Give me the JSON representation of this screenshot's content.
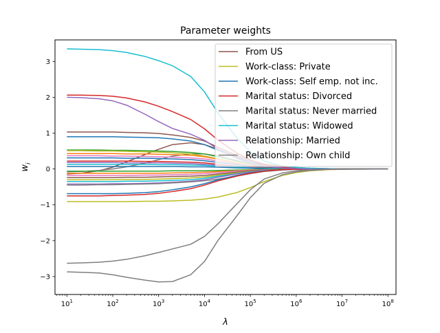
{
  "chart_data": {
    "type": "line",
    "title": "Parameter weights",
    "xlabel": "λ",
    "ylabel": "w",
    "ylabel_sub": "i",
    "xscale": "log",
    "xlim": [
      5.5,
      150000000
    ],
    "ylim": [
      -3.5,
      3.6
    ],
    "grid": false,
    "legend_position": "top-right",
    "x": [
      10,
      20,
      50,
      100,
      200,
      500,
      1000,
      2000,
      5000,
      10000,
      20000,
      50000,
      100000,
      200000,
      500000,
      1000000,
      2000000,
      5000000,
      10000000,
      100000000
    ],
    "x_ticks": [
      {
        "value": 10,
        "base": "10",
        "exp": "1"
      },
      {
        "value": 100,
        "base": "10",
        "exp": "2"
      },
      {
        "value": 1000,
        "base": "10",
        "exp": "3"
      },
      {
        "value": 10000,
        "base": "10",
        "exp": "4"
      },
      {
        "value": 100000,
        "base": "10",
        "exp": "5"
      },
      {
        "value": 1000000,
        "base": "10",
        "exp": "6"
      },
      {
        "value": 10000000,
        "base": "10",
        "exp": "7"
      },
      {
        "value": 100000000,
        "base": "10",
        "exp": "8"
      }
    ],
    "y_ticks": [
      -3,
      -2,
      -1,
      0,
      1,
      2,
      3
    ],
    "y_tick_labels": [
      "−3",
      "−2",
      "−1",
      "0",
      "1",
      "2",
      "3"
    ],
    "series": [
      {
        "name": "From US",
        "color": "#8c564b",
        "values": [
          1.03,
          1.03,
          1.03,
          1.03,
          1.02,
          1.01,
          0.99,
          0.95,
          0.88,
          0.78,
          0.6,
          0.38,
          0.24,
          0.14,
          0.07,
          0.04,
          0.02,
          0.01,
          0.0,
          0.0
        ]
      },
      {
        "name": "Work-class: Private",
        "color": "#bcbd22",
        "values": [
          -0.91,
          -0.91,
          -0.91,
          -0.91,
          -0.91,
          -0.9,
          -0.9,
          -0.89,
          -0.87,
          -0.84,
          -0.78,
          -0.66,
          -0.52,
          -0.35,
          -0.18,
          -0.1,
          -0.05,
          -0.02,
          -0.01,
          0.0
        ]
      },
      {
        "name": "Work-class: Self emp. not inc.",
        "color": "#1f77b4",
        "values": [
          0.9,
          0.9,
          0.9,
          0.9,
          0.89,
          0.88,
          0.87,
          0.84,
          0.78,
          0.68,
          0.52,
          0.32,
          0.2,
          0.11,
          0.05,
          0.03,
          0.01,
          0.0,
          0.0,
          0.0
        ]
      },
      {
        "name": "Marital status: Divorced",
        "color": "#d62728",
        "values": [
          2.06,
          2.06,
          2.05,
          2.03,
          1.98,
          1.87,
          1.75,
          1.6,
          1.38,
          1.12,
          0.8,
          0.45,
          0.25,
          0.12,
          0.05,
          0.02,
          0.01,
          0.0,
          0.0,
          0.0
        ]
      },
      {
        "name": "Marital status: Never married",
        "color": "#7f7f7f",
        "values": [
          -2.87,
          -2.88,
          -2.9,
          -2.95,
          -3.02,
          -3.1,
          -3.15,
          -3.14,
          -2.95,
          -2.58,
          -1.98,
          -1.32,
          -0.8,
          -0.4,
          -0.16,
          -0.08,
          -0.04,
          -0.01,
          -0.01,
          0.0
        ]
      },
      {
        "name": "Marital status: Widowed",
        "color": "#17becf",
        "values": [
          3.35,
          3.34,
          3.33,
          3.3,
          3.25,
          3.14,
          3.02,
          2.88,
          2.58,
          2.15,
          1.55,
          0.88,
          0.48,
          0.22,
          0.08,
          0.04,
          0.02,
          0.01,
          0.0,
          0.0
        ]
      },
      {
        "name": "Relationship: Married",
        "color": "#9467bd",
        "values": [
          2.0,
          1.99,
          1.96,
          1.9,
          1.78,
          1.53,
          1.32,
          1.13,
          0.97,
          0.8,
          0.55,
          0.3,
          0.16,
          0.08,
          0.03,
          0.01,
          0.0,
          0.0,
          0.0,
          0.0
        ]
      },
      {
        "name": "Relationship: Own child",
        "color": "#7f7f7f",
        "values": [
          -2.63,
          -2.62,
          -2.6,
          -2.57,
          -2.52,
          -2.42,
          -2.33,
          -2.23,
          -2.1,
          -1.88,
          -1.52,
          -0.98,
          -0.58,
          -0.28,
          -0.11,
          -0.05,
          -0.02,
          -0.01,
          0.0,
          0.0
        ]
      },
      {
        "color": "#8c564b",
        "values": [
          -0.14,
          -0.12,
          -0.05,
          0.05,
          0.2,
          0.4,
          0.55,
          0.68,
          0.73,
          0.68,
          0.55,
          0.34,
          0.2,
          0.1,
          0.04,
          0.02,
          0.01,
          0.0,
          0.0,
          0.0
        ]
      },
      {
        "color": "#7f7f7f",
        "values": [
          -0.08,
          -0.07,
          -0.04,
          0.0,
          0.06,
          0.16,
          0.26,
          0.36,
          0.42,
          0.42,
          0.36,
          0.24,
          0.14,
          0.07,
          0.03,
          0.01,
          0.0,
          0.0,
          0.0,
          0.0
        ]
      },
      {
        "color": "#2ca02c",
        "values": [
          0.53,
          0.53,
          0.53,
          0.52,
          0.52,
          0.51,
          0.5,
          0.49,
          0.46,
          0.42,
          0.34,
          0.22,
          0.14,
          0.08,
          0.03,
          0.02,
          0.01,
          0.0,
          0.0,
          0.0
        ]
      },
      {
        "color": "#bcbd22",
        "values": [
          0.51,
          0.51,
          0.5,
          0.5,
          0.49,
          0.48,
          0.47,
          0.45,
          0.42,
          0.36,
          0.28,
          0.17,
          0.1,
          0.05,
          0.02,
          0.01,
          0.0,
          0.0,
          0.0,
          0.0
        ]
      },
      {
        "color": "#ff7f0e",
        "values": [
          0.43,
          0.43,
          0.43,
          0.43,
          0.42,
          0.42,
          0.41,
          0.4,
          0.38,
          0.34,
          0.27,
          0.17,
          0.1,
          0.05,
          0.02,
          0.01,
          0.0,
          0.0,
          0.0,
          0.0
        ]
      },
      {
        "color": "#e377c2",
        "values": [
          0.37,
          0.37,
          0.37,
          0.36,
          0.36,
          0.35,
          0.34,
          0.33,
          0.31,
          0.28,
          0.22,
          0.14,
          0.08,
          0.04,
          0.02,
          0.01,
          0.0,
          0.0,
          0.0,
          0.0
        ]
      },
      {
        "color": "#1f77b4",
        "values": [
          0.31,
          0.31,
          0.31,
          0.31,
          0.3,
          0.3,
          0.29,
          0.28,
          0.26,
          0.23,
          0.18,
          0.12,
          0.07,
          0.04,
          0.02,
          0.01,
          0.0,
          0.0,
          0.0,
          0.0
        ]
      },
      {
        "color": "#d62728",
        "values": [
          0.22,
          0.22,
          0.22,
          0.22,
          0.22,
          0.21,
          0.21,
          0.2,
          0.19,
          0.17,
          0.13,
          0.08,
          0.05,
          0.03,
          0.01,
          0.0,
          0.0,
          0.0,
          0.0,
          0.0
        ]
      },
      {
        "color": "#9467bd",
        "values": [
          0.18,
          0.18,
          0.18,
          0.18,
          0.17,
          0.17,
          0.17,
          0.16,
          0.15,
          0.13,
          0.1,
          0.06,
          0.04,
          0.02,
          0.01,
          0.0,
          0.0,
          0.0,
          0.0,
          0.0
        ]
      },
      {
        "color": "#17becf",
        "values": [
          0.13,
          0.13,
          0.13,
          0.13,
          0.13,
          0.13,
          0.12,
          0.12,
          0.11,
          0.1,
          0.08,
          0.05,
          0.03,
          0.02,
          0.01,
          0.0,
          0.0,
          0.0,
          0.0,
          0.0
        ]
      },
      {
        "color": "#1f77b4",
        "values": [
          0.07,
          0.07,
          0.07,
          0.07,
          0.07,
          0.07,
          0.07,
          0.07,
          0.06,
          0.06,
          0.05,
          0.03,
          0.02,
          0.01,
          0.0,
          0.0,
          0.0,
          0.0,
          0.0,
          0.0
        ]
      },
      {
        "color": "#2ca02c",
        "values": [
          -0.06,
          -0.06,
          -0.06,
          -0.06,
          -0.06,
          -0.06,
          -0.06,
          -0.05,
          -0.05,
          -0.05,
          -0.04,
          -0.03,
          -0.02,
          -0.01,
          0.0,
          0.0,
          0.0,
          0.0,
          0.0,
          0.0
        ]
      },
      {
        "color": "#ff7f0e",
        "values": [
          -0.12,
          -0.12,
          -0.12,
          -0.12,
          -0.12,
          -0.12,
          -0.12,
          -0.11,
          -0.1,
          -0.09,
          -0.07,
          -0.05,
          -0.03,
          -0.02,
          -0.01,
          0.0,
          0.0,
          0.0,
          0.0,
          0.0
        ]
      },
      {
        "color": "#e377c2",
        "values": [
          -0.18,
          -0.18,
          -0.18,
          -0.18,
          -0.18,
          -0.17,
          -0.17,
          -0.16,
          -0.15,
          -0.13,
          -0.1,
          -0.06,
          -0.04,
          -0.02,
          -0.01,
          0.0,
          0.0,
          0.0,
          0.0,
          0.0
        ]
      },
      {
        "color": "#8c564b",
        "values": [
          -0.24,
          -0.24,
          -0.24,
          -0.24,
          -0.23,
          -0.23,
          -0.22,
          -0.21,
          -0.2,
          -0.18,
          -0.14,
          -0.09,
          -0.05,
          -0.03,
          -0.01,
          0.0,
          0.0,
          0.0,
          0.0,
          0.0
        ]
      },
      {
        "color": "#bcbd22",
        "values": [
          -0.3,
          -0.3,
          -0.3,
          -0.3,
          -0.29,
          -0.29,
          -0.28,
          -0.27,
          -0.25,
          -0.22,
          -0.17,
          -0.11,
          -0.07,
          -0.04,
          -0.02,
          -0.01,
          0.0,
          0.0,
          0.0,
          0.0
        ]
      },
      {
        "color": "#17becf",
        "values": [
          -0.35,
          -0.35,
          -0.35,
          -0.35,
          -0.34,
          -0.34,
          -0.33,
          -0.32,
          -0.3,
          -0.26,
          -0.2,
          -0.13,
          -0.08,
          -0.04,
          -0.02,
          -0.01,
          0.0,
          0.0,
          0.0,
          0.0
        ]
      },
      {
        "color": "#9467bd",
        "values": [
          -0.42,
          -0.42,
          -0.42,
          -0.41,
          -0.41,
          -0.4,
          -0.39,
          -0.37,
          -0.34,
          -0.3,
          -0.23,
          -0.14,
          -0.09,
          -0.05,
          -0.02,
          -0.01,
          0.0,
          0.0,
          0.0,
          0.0
        ]
      },
      {
        "color": "#7f7f7f",
        "values": [
          -0.45,
          -0.45,
          -0.44,
          -0.44,
          -0.43,
          -0.42,
          -0.41,
          -0.39,
          -0.36,
          -0.33,
          -0.28,
          -0.2,
          -0.13,
          -0.07,
          -0.03,
          -0.01,
          0.0,
          0.0,
          0.0,
          0.0
        ]
      },
      {
        "color": "#1f77b4",
        "values": [
          -0.69,
          -0.69,
          -0.69,
          -0.69,
          -0.68,
          -0.66,
          -0.63,
          -0.58,
          -0.5,
          -0.41,
          -0.3,
          -0.18,
          -0.11,
          -0.06,
          -0.02,
          -0.01,
          0.0,
          0.0,
          0.0,
          0.0
        ]
      },
      {
        "color": "#d62728",
        "values": [
          -0.75,
          -0.75,
          -0.75,
          -0.74,
          -0.73,
          -0.71,
          -0.68,
          -0.63,
          -0.55,
          -0.45,
          -0.33,
          -0.2,
          -0.12,
          -0.06,
          -0.02,
          -0.01,
          0.0,
          0.0,
          0.0,
          0.0
        ]
      }
    ]
  }
}
